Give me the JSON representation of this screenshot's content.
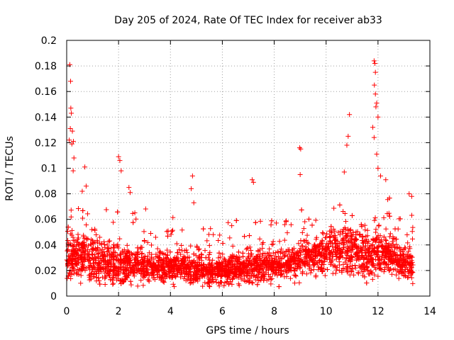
{
  "chart_data": {
    "type": "scatter",
    "title": "Day 205 of 2024, Rate Of TEC Index for receiver ab33",
    "xlabel": "GPS time / hours",
    "ylabel": "ROTI / TECUs",
    "xlim": [
      0,
      14
    ],
    "ylim": [
      0,
      0.2
    ],
    "x_ticks": [
      "0",
      "2",
      "4",
      "6",
      "8",
      "10",
      "12",
      "14"
    ],
    "y_ticks": [
      "0",
      "0.02",
      "0.04",
      "0.06",
      "0.08",
      "0.1",
      "0.12",
      "0.14",
      "0.16",
      "0.18",
      "0.2"
    ],
    "x_tick_values": [
      0,
      2,
      4,
      6,
      8,
      10,
      12,
      14
    ],
    "y_tick_values": [
      0,
      0.02,
      0.04,
      0.06,
      0.08,
      0.1,
      0.12,
      0.14,
      0.16,
      0.18,
      0.2
    ],
    "grid": true,
    "marker": "+",
    "series_color": "#ff0000",
    "x_data_range": [
      0,
      13.35
    ],
    "series": [
      {
        "name": "ROTI",
        "points": [
          [
            0.12,
            0.181
          ],
          [
            0.15,
            0.168
          ],
          [
            0.16,
            0.147
          ],
          [
            0.18,
            0.143
          ],
          [
            0.14,
            0.131
          ],
          [
            0.22,
            0.129
          ],
          [
            0.1,
            0.122
          ],
          [
            0.2,
            0.119
          ],
          [
            0.26,
            0.121
          ],
          [
            0.28,
            0.108
          ],
          [
            0.25,
            0.098
          ],
          [
            0.7,
            0.101
          ],
          [
            0.75,
            0.086
          ],
          [
            0.6,
            0.082
          ],
          [
            2.0,
            0.109
          ],
          [
            2.05,
            0.106
          ],
          [
            2.1,
            0.098
          ],
          [
            2.4,
            0.085
          ],
          [
            2.45,
            0.081
          ],
          [
            4.85,
            0.094
          ],
          [
            4.8,
            0.084
          ],
          [
            4.9,
            0.073
          ],
          [
            7.15,
            0.091
          ],
          [
            7.2,
            0.089
          ],
          [
            8.98,
            0.116
          ],
          [
            9.02,
            0.115
          ],
          [
            9.0,
            0.095
          ],
          [
            10.9,
            0.142
          ],
          [
            10.85,
            0.125
          ],
          [
            10.8,
            0.118
          ],
          [
            10.7,
            0.097
          ],
          [
            11.85,
            0.184
          ],
          [
            11.88,
            0.182
          ],
          [
            11.9,
            0.175
          ],
          [
            11.86,
            0.165
          ],
          [
            11.9,
            0.158
          ],
          [
            11.95,
            0.151
          ],
          [
            11.92,
            0.148
          ],
          [
            12.0,
            0.14
          ],
          [
            11.8,
            0.132
          ],
          [
            11.85,
            0.124
          ],
          [
            11.95,
            0.111
          ],
          [
            12.0,
            0.1
          ],
          [
            12.1,
            0.094
          ],
          [
            12.3,
            0.091
          ],
          [
            13.2,
            0.08
          ],
          [
            13.3,
            0.078
          ]
        ]
      }
    ]
  }
}
